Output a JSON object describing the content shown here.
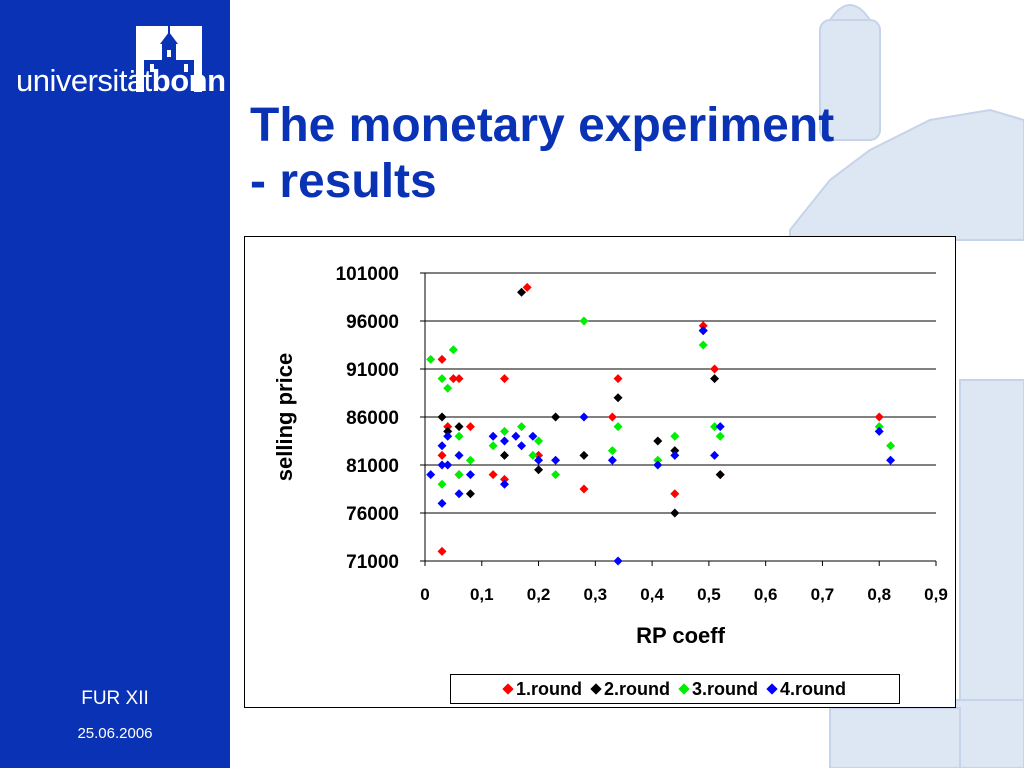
{
  "branding": {
    "logo_text_regular": "universität",
    "logo_text_bold": "bonn"
  },
  "slide": {
    "title_line1": "The monetary experiment",
    "title_line2": "- results"
  },
  "footer": {
    "conference": "FUR XII",
    "date": "25.06.2006"
  },
  "colors": {
    "sidebar": "#0a32b4",
    "title": "#0a32b4",
    "round1": "#ff0000",
    "round2": "#000000",
    "round3": "#00ee00",
    "round4": "#0000ff"
  },
  "chart_data": {
    "type": "scatter",
    "xlabel": "RP coeff",
    "ylabel": "selling price",
    "xlim": [
      0,
      0.9
    ],
    "ylim": [
      71000,
      101000
    ],
    "x_ticks": [
      "0",
      "0,1",
      "0,2",
      "0,3",
      "0,4",
      "0,5",
      "0,6",
      "0,7",
      "0,8",
      "0,9"
    ],
    "y_ticks": [
      "101000",
      "96000",
      "91000",
      "86000",
      "81000",
      "76000",
      "71000"
    ],
    "grid": "horizontal",
    "legend_position": "bottom",
    "series": [
      {
        "name": "1.round",
        "color": "#ff0000",
        "points": [
          [
            0.03,
            92000
          ],
          [
            0.05,
            90000
          ],
          [
            0.06,
            90000
          ],
          [
            0.04,
            85000
          ],
          [
            0.08,
            85000
          ],
          [
            0.03,
            82000
          ],
          [
            0.03,
            72000
          ],
          [
            0.06,
            80000
          ],
          [
            0.12,
            80000
          ],
          [
            0.14,
            90000
          ],
          [
            0.14,
            79500
          ],
          [
            0.18,
            99500
          ],
          [
            0.2,
            82000
          ],
          [
            0.28,
            78500
          ],
          [
            0.33,
            86000
          ],
          [
            0.34,
            90000
          ],
          [
            0.44,
            78000
          ],
          [
            0.49,
            95500
          ],
          [
            0.51,
            91000
          ],
          [
            0.52,
            80000
          ],
          [
            0.8,
            86000
          ]
        ]
      },
      {
        "name": "2.round",
        "color": "#000000",
        "points": [
          [
            0.03,
            86000
          ],
          [
            0.04,
            84500
          ],
          [
            0.06,
            85000
          ],
          [
            0.08,
            78000
          ],
          [
            0.14,
            82000
          ],
          [
            0.17,
            99000
          ],
          [
            0.2,
            80500
          ],
          [
            0.23,
            86000
          ],
          [
            0.28,
            82000
          ],
          [
            0.34,
            88000
          ],
          [
            0.41,
            83500
          ],
          [
            0.44,
            76000
          ],
          [
            0.44,
            82500
          ],
          [
            0.49,
            95000
          ],
          [
            0.51,
            90000
          ],
          [
            0.52,
            80000
          ]
        ]
      },
      {
        "name": "3.round",
        "color": "#00ee00",
        "points": [
          [
            0.01,
            92000
          ],
          [
            0.03,
            90000
          ],
          [
            0.04,
            89000
          ],
          [
            0.05,
            93000
          ],
          [
            0.06,
            84000
          ],
          [
            0.03,
            79000
          ],
          [
            0.06,
            80000
          ],
          [
            0.08,
            81500
          ],
          [
            0.12,
            83000
          ],
          [
            0.14,
            84500
          ],
          [
            0.17,
            85000
          ],
          [
            0.19,
            82000
          ],
          [
            0.2,
            83500
          ],
          [
            0.23,
            80000
          ],
          [
            0.28,
            96000
          ],
          [
            0.33,
            82500
          ],
          [
            0.34,
            85000
          ],
          [
            0.41,
            81500
          ],
          [
            0.44,
            84000
          ],
          [
            0.49,
            93500
          ],
          [
            0.51,
            85000
          ],
          [
            0.52,
            84000
          ],
          [
            0.8,
            85000
          ],
          [
            0.82,
            83000
          ]
        ]
      },
      {
        "name": "4.round",
        "color": "#0000ff",
        "points": [
          [
            0.01,
            80000
          ],
          [
            0.03,
            83000
          ],
          [
            0.03,
            81000
          ],
          [
            0.04,
            81000
          ],
          [
            0.04,
            84000
          ],
          [
            0.03,
            77000
          ],
          [
            0.06,
            82000
          ],
          [
            0.06,
            78000
          ],
          [
            0.08,
            80000
          ],
          [
            0.12,
            84000
          ],
          [
            0.14,
            83500
          ],
          [
            0.14,
            79000
          ],
          [
            0.16,
            84000
          ],
          [
            0.17,
            83000
          ],
          [
            0.19,
            84000
          ],
          [
            0.2,
            81500
          ],
          [
            0.23,
            81500
          ],
          [
            0.28,
            86000
          ],
          [
            0.33,
            81500
          ],
          [
            0.34,
            71000
          ],
          [
            0.41,
            81000
          ],
          [
            0.44,
            82000
          ],
          [
            0.49,
            95000
          ],
          [
            0.51,
            82000
          ],
          [
            0.52,
            85000
          ],
          [
            0.8,
            84500
          ],
          [
            0.82,
            81500
          ]
        ]
      }
    ]
  }
}
